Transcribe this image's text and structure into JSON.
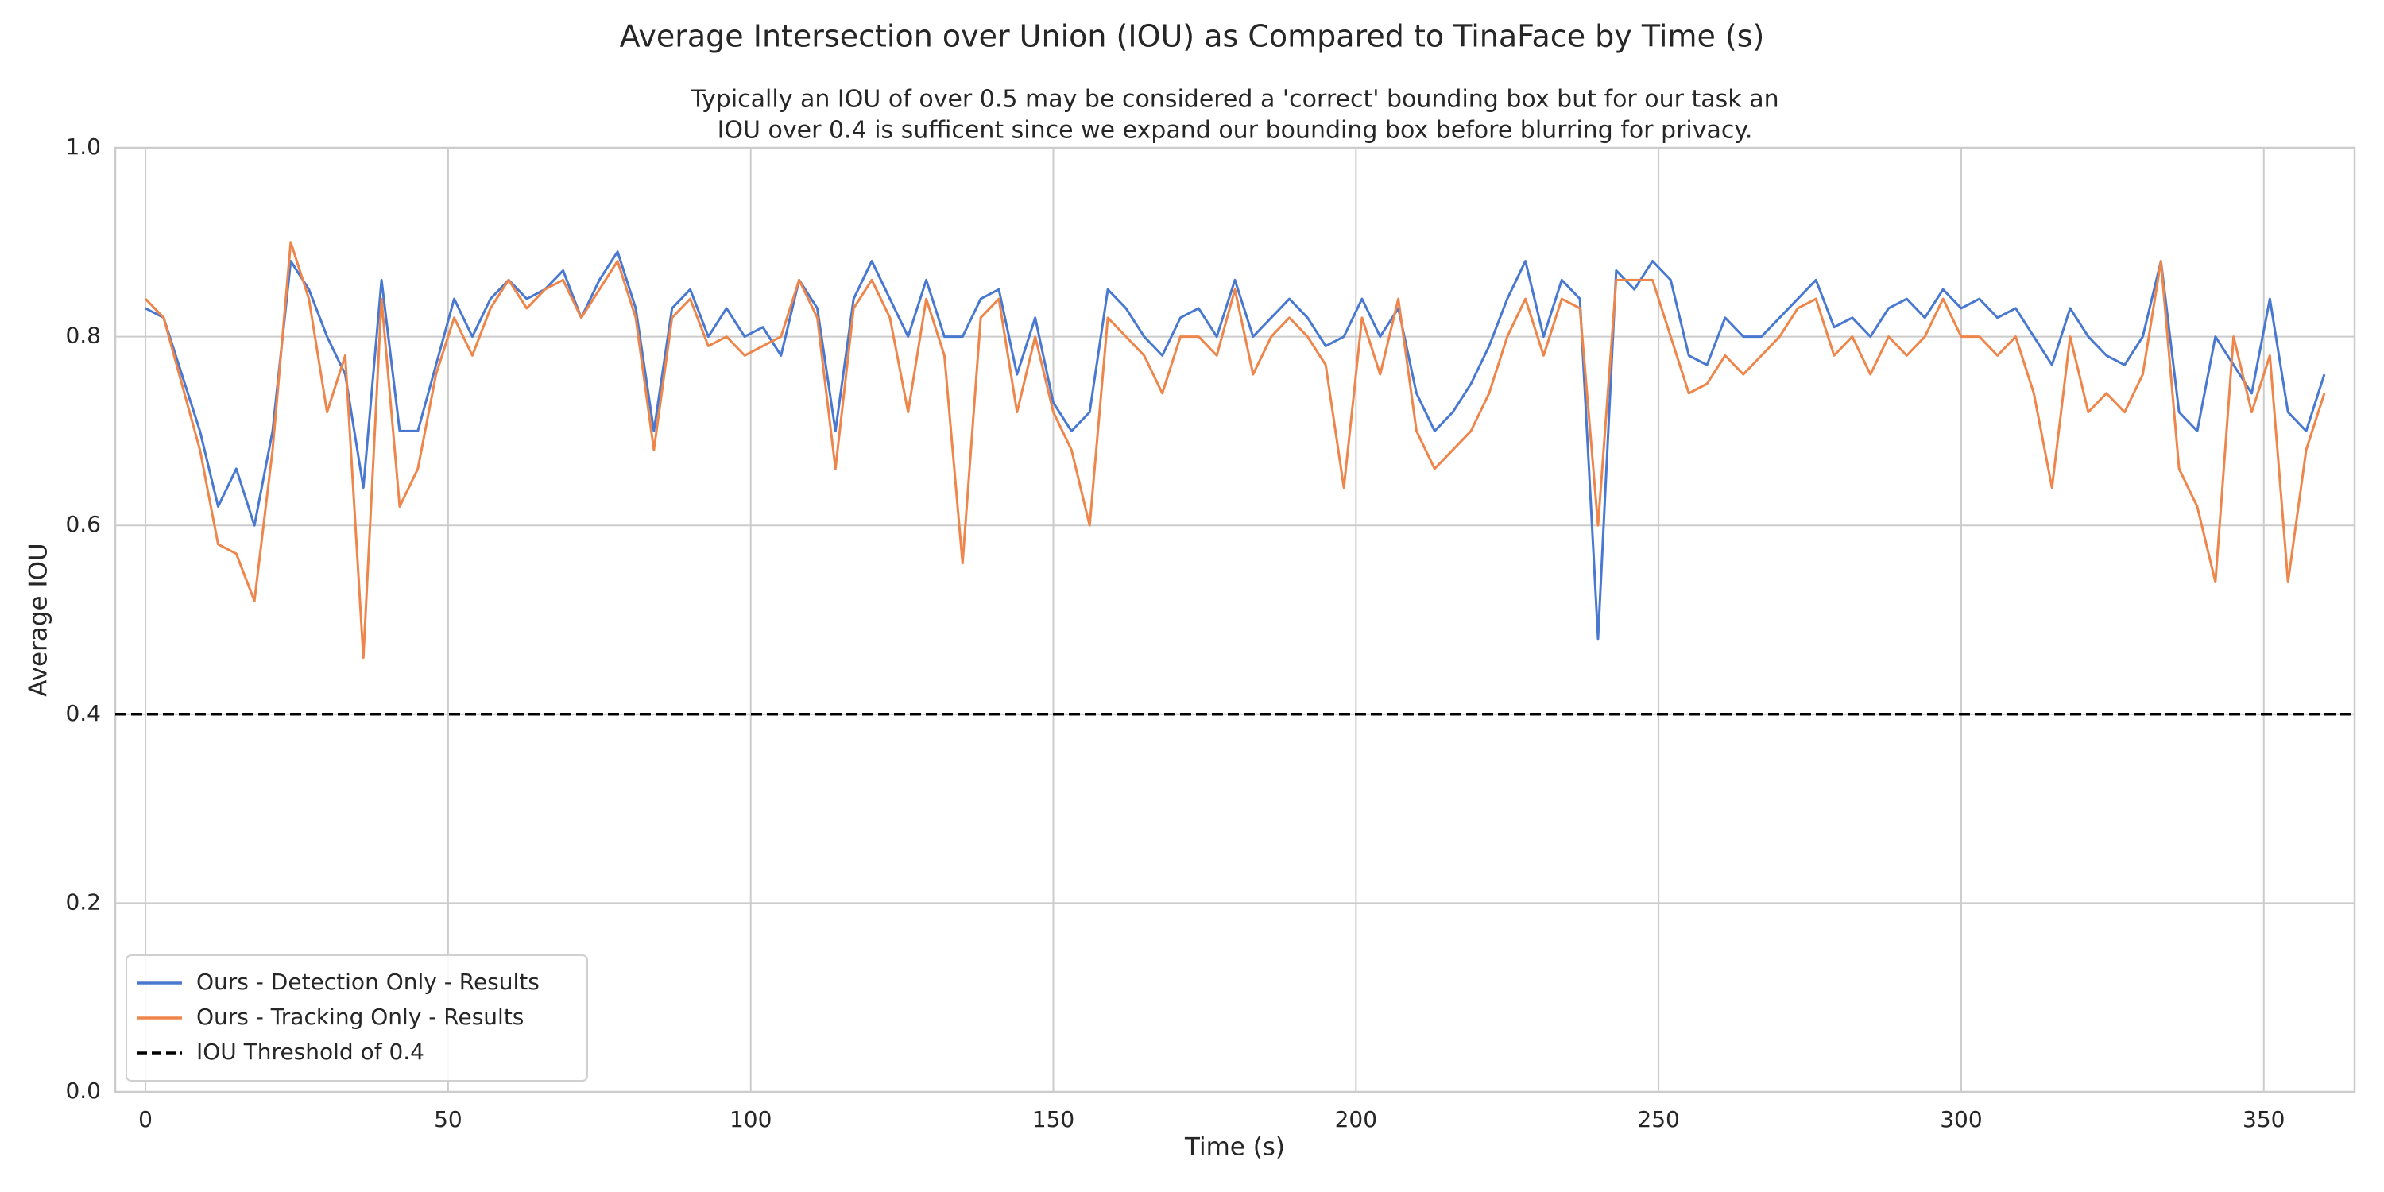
{
  "chart_data": {
    "type": "line",
    "title": "Average Intersection over Union (IOU) as Compared to TinaFace by Time (s)",
    "subtitle": [
      "Typically an IOU of over 0.5 may be considered a 'correct' bounding box but for our task an",
      "IOU over 0.4 is sufficent since we expand our bounding box before blurring for privacy."
    ],
    "x_label": "Time (s)",
    "y_label": "Average IOU",
    "x": [
      0,
      3,
      6,
      9,
      12,
      15,
      18,
      21,
      24,
      27,
      30,
      33,
      36,
      39,
      42,
      45,
      48,
      51,
      54,
      57,
      60,
      63,
      66,
      69,
      72,
      75,
      78,
      81,
      84,
      87,
      90,
      93,
      96,
      99,
      102,
      105,
      108,
      111,
      114,
      117,
      120,
      123,
      126,
      129,
      132,
      135,
      138,
      141,
      144,
      147,
      150,
      153,
      156,
      159,
      162,
      165,
      168,
      171,
      174,
      177,
      180,
      183,
      186,
      189,
      192,
      195,
      198,
      201,
      204,
      207,
      210,
      213,
      216,
      219,
      222,
      225,
      228,
      231,
      234,
      237,
      240,
      243,
      246,
      249,
      252,
      255,
      258,
      261,
      264,
      267,
      270,
      273,
      276,
      279,
      282,
      285,
      288,
      291,
      294,
      297,
      300,
      303,
      306,
      309,
      312,
      315,
      318,
      321,
      324,
      327,
      330,
      333,
      336,
      339,
      342,
      345,
      348,
      351,
      354,
      357,
      360
    ],
    "series": [
      {
        "name": "Ours - Detection Only - Results",
        "color": "#4878d0",
        "values": [
          0.83,
          0.82,
          0.76,
          0.7,
          0.62,
          0.66,
          0.6,
          0.7,
          0.88,
          0.85,
          0.8,
          0.76,
          0.64,
          0.86,
          0.7,
          0.7,
          0.77,
          0.84,
          0.8,
          0.84,
          0.86,
          0.84,
          0.85,
          0.87,
          0.82,
          0.86,
          0.89,
          0.83,
          0.7,
          0.83,
          0.85,
          0.8,
          0.83,
          0.8,
          0.81,
          0.78,
          0.86,
          0.83,
          0.7,
          0.84,
          0.88,
          0.84,
          0.8,
          0.86,
          0.8,
          0.8,
          0.84,
          0.85,
          0.76,
          0.82,
          0.73,
          0.7,
          0.72,
          0.85,
          0.83,
          0.8,
          0.78,
          0.82,
          0.83,
          0.8,
          0.86,
          0.8,
          0.82,
          0.84,
          0.82,
          0.79,
          0.8,
          0.84,
          0.8,
          0.83,
          0.74,
          0.7,
          0.72,
          0.75,
          0.79,
          0.84,
          0.88,
          0.8,
          0.86,
          0.84,
          0.48,
          0.87,
          0.85,
          0.88,
          0.86,
          0.78,
          0.77,
          0.82,
          0.8,
          0.8,
          0.82,
          0.84,
          0.86,
          0.81,
          0.82,
          0.8,
          0.83,
          0.84,
          0.82,
          0.85,
          0.83,
          0.84,
          0.82,
          0.83,
          0.8,
          0.77,
          0.83,
          0.8,
          0.78,
          0.77,
          0.8,
          0.88,
          0.72,
          0.7,
          0.8,
          0.77,
          0.74,
          0.84,
          0.72,
          0.7,
          0.76
        ]
      },
      {
        "name": "Ours - Tracking Only - Results",
        "color": "#ee854a",
        "values": [
          0.84,
          0.82,
          0.75,
          0.68,
          0.58,
          0.57,
          0.52,
          0.68,
          0.9,
          0.84,
          0.72,
          0.78,
          0.46,
          0.84,
          0.62,
          0.66,
          0.76,
          0.82,
          0.78,
          0.83,
          0.86,
          0.83,
          0.85,
          0.86,
          0.82,
          0.85,
          0.88,
          0.82,
          0.68,
          0.82,
          0.84,
          0.79,
          0.8,
          0.78,
          0.79,
          0.8,
          0.86,
          0.82,
          0.66,
          0.83,
          0.86,
          0.82,
          0.72,
          0.84,
          0.78,
          0.56,
          0.82,
          0.84,
          0.72,
          0.8,
          0.72,
          0.68,
          0.6,
          0.82,
          0.8,
          0.78,
          0.74,
          0.8,
          0.8,
          0.78,
          0.85,
          0.76,
          0.8,
          0.82,
          0.8,
          0.77,
          0.64,
          0.82,
          0.76,
          0.84,
          0.7,
          0.66,
          0.68,
          0.7,
          0.74,
          0.8,
          0.84,
          0.78,
          0.84,
          0.83,
          0.6,
          0.86,
          0.86,
          0.86,
          0.8,
          0.74,
          0.75,
          0.78,
          0.76,
          0.78,
          0.8,
          0.83,
          0.84,
          0.78,
          0.8,
          0.76,
          0.8,
          0.78,
          0.8,
          0.84,
          0.8,
          0.8,
          0.78,
          0.8,
          0.74,
          0.64,
          0.8,
          0.72,
          0.74,
          0.72,
          0.76,
          0.88,
          0.66,
          0.62,
          0.54,
          0.8,
          0.72,
          0.78,
          0.54,
          0.68,
          0.74
        ]
      }
    ],
    "hlines": [
      {
        "value": 0.4,
        "name": "IOU Threshold of 0.4",
        "color": "#000000",
        "dash": true
      }
    ],
    "xlim": [
      -5,
      365
    ],
    "xticks": [
      0,
      50,
      100,
      150,
      200,
      250,
      300,
      350
    ],
    "ylim": [
      0,
      1
    ],
    "yticks": [
      {
        "value": 0,
        "label": "0.0"
      },
      0.2,
      0.4,
      0.6,
      0.8,
      {
        "value": 1,
        "label": "1.0"
      }
    ],
    "grid": true,
    "legend": "lower left"
  }
}
